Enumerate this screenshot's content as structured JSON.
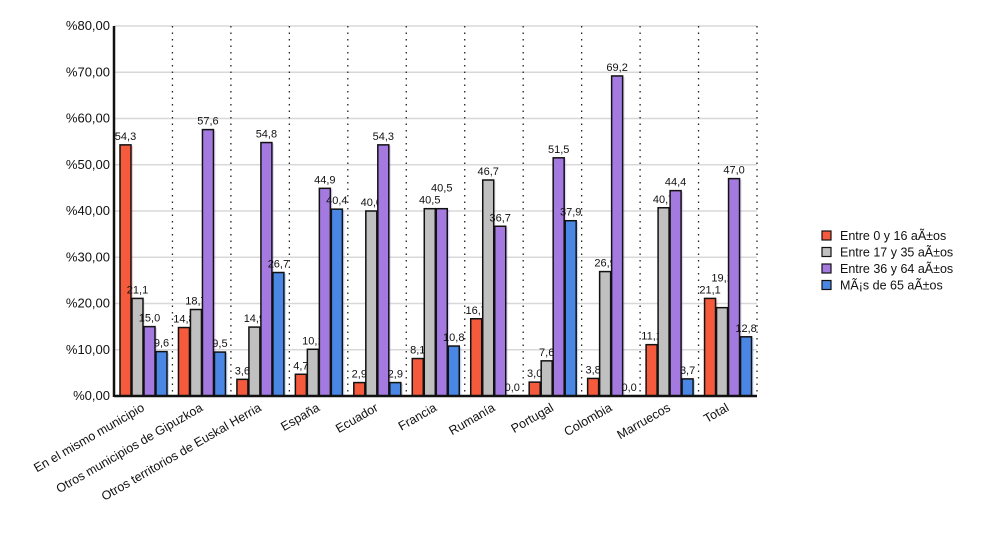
{
  "chart_data": {
    "type": "bar",
    "title": "",
    "xlabel": "",
    "ylabel": "",
    "ylim": [
      0,
      80
    ],
    "yticks": [
      "%0,00",
      "%10,00",
      "%20,00",
      "%30,00",
      "%40,00",
      "%50,00",
      "%60,00",
      "%70,00",
      "%80,00"
    ],
    "grid": true,
    "legend_position": "right",
    "categories": [
      "En el mismo municipio",
      "Otros municipios de Gipuzkoa",
      "Otros territorios de Euskal Herria",
      "España",
      "Ecuador",
      "Francia",
      "Rumanía",
      "Portugal",
      "Colombia",
      "Marruecos",
      "Total"
    ],
    "series": [
      {
        "name": "Entre 0 y 16 aÃ±os",
        "color": "#f55a3c",
        "values": [
          54.3,
          14.8,
          3.6,
          4.7,
          2.9,
          8.1,
          16.7,
          3.0,
          3.8,
          11.1,
          21.1
        ]
      },
      {
        "name": "Entre 17 y 35 aÃ±os",
        "color": "#c0c0c0",
        "values": [
          21.1,
          18.7,
          14.9,
          10.1,
          40.0,
          40.5,
          46.7,
          7.6,
          26.9,
          40.7,
          19.1
        ]
      },
      {
        "name": "Entre 36 y 64 aÃ±os",
        "color": "#a57ae0",
        "values": [
          15.0,
          57.6,
          54.8,
          44.9,
          54.3,
          40.5,
          36.7,
          51.5,
          69.2,
          44.4,
          47.0
        ]
      },
      {
        "name": "MÃ¡s de 65 aÃ±os",
        "color": "#4a86e4",
        "values": [
          9.6,
          9.5,
          26.7,
          40.4,
          2.9,
          10.8,
          0.0,
          37.9,
          0.0,
          3.7,
          12.8
        ]
      }
    ]
  }
}
